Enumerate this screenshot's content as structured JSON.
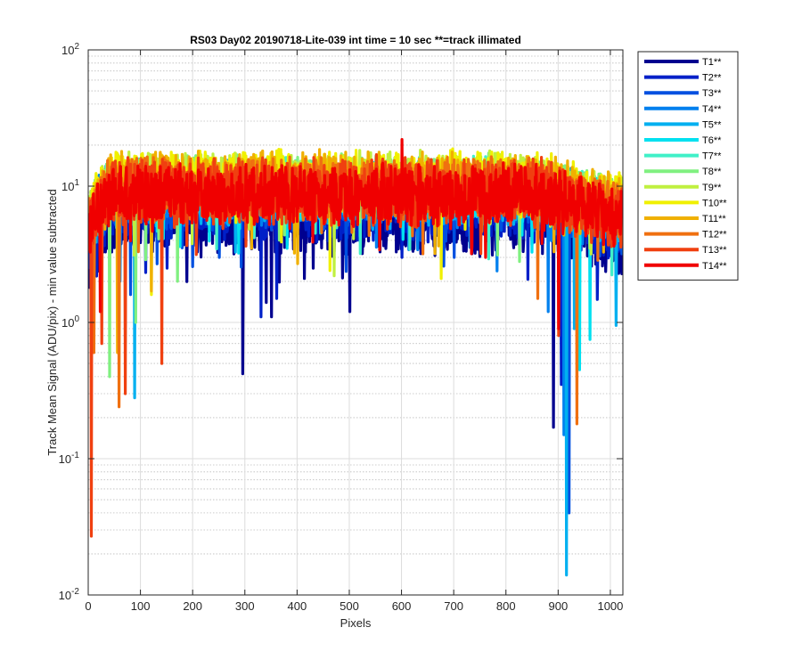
{
  "chart_data": {
    "type": "line",
    "title": "RS03 Day02 20190718-Lite-039 int time = 10 sec    **=track illimated",
    "xlabel": "Pixels",
    "ylabel": "Track Mean Signal (ADU/pix) - min value subtracted",
    "xlim": [
      0,
      1024
    ],
    "ylim": [
      0.01,
      100
    ],
    "yscale": "log",
    "grid": true,
    "legend_position": "outside-right",
    "x_ticks": [
      "0",
      "100",
      "200",
      "300",
      "400",
      "500",
      "600",
      "700",
      "800",
      "900",
      "1000"
    ],
    "y_ticks": [
      {
        "base": "10",
        "exp": "-2"
      },
      {
        "base": "10",
        "exp": "-1"
      },
      {
        "base": "10",
        "exp": "0"
      },
      {
        "base": "10",
        "exp": "1"
      },
      {
        "base": "10",
        "exp": "2"
      }
    ],
    "series": [
      {
        "name": "T1**",
        "color": "#00008f",
        "center": 6.0,
        "spread": 0.55,
        "dips": [
          [
            295,
            0.42
          ],
          [
            350,
            1.1
          ],
          [
            340,
            1.4
          ],
          [
            500,
            1.2
          ],
          [
            890,
            0.17
          ],
          [
            620,
            3.5
          ],
          [
            430,
            2.5
          ]
        ]
      },
      {
        "name": "T2**",
        "color": "#0020c8",
        "center": 7.0,
        "spread": 0.5,
        "dips": [
          [
            330,
            1.1
          ],
          [
            360,
            1.5
          ],
          [
            905,
            0.35
          ],
          [
            600,
            3.0
          ],
          [
            150,
            2.5
          ]
        ]
      },
      {
        "name": "T3**",
        "color": "#0050e0",
        "center": 8.0,
        "spread": 0.45,
        "dips": [
          [
            920,
            0.04
          ],
          [
            80,
            1.6
          ],
          [
            250,
            3.0
          ],
          [
            700,
            3.0
          ]
        ]
      },
      {
        "name": "T4**",
        "color": "#0080ee",
        "center": 9.0,
        "spread": 0.45,
        "dips": [
          [
            910,
            0.15
          ],
          [
            60,
            2.0
          ],
          [
            880,
            1.2
          ]
        ]
      },
      {
        "name": "T5**",
        "color": "#00b0f0",
        "center": 8.5,
        "spread": 0.45,
        "dips": [
          [
            88,
            0.28
          ],
          [
            915,
            0.014
          ],
          [
            1010,
            0.95
          ],
          [
            930,
            0.9
          ]
        ]
      },
      {
        "name": "T6**",
        "color": "#00e0f0",
        "center": 9.5,
        "spread": 0.4,
        "dips": [
          [
            940,
            0.45
          ],
          [
            960,
            0.75
          ],
          [
            380,
            3.5
          ]
        ]
      },
      {
        "name": "T7**",
        "color": "#40f0c8",
        "center": 10.0,
        "spread": 0.4,
        "dips": [
          [
            70,
            0.7
          ],
          [
            520,
            3.2
          ]
        ]
      },
      {
        "name": "T8**",
        "color": "#80f080",
        "center": 10.5,
        "spread": 0.4,
        "dips": [
          [
            90,
            1.0
          ],
          [
            170,
            2.0
          ],
          [
            40,
            0.4
          ],
          [
            825,
            2.8
          ]
        ]
      },
      {
        "name": "T9**",
        "color": "#c0f040",
        "center": 11.0,
        "spread": 0.4,
        "dips": [
          [
            140,
            1.7
          ],
          [
            470,
            2.2
          ],
          [
            960,
            3.5
          ]
        ]
      },
      {
        "name": "T10**",
        "color": "#f0f000",
        "center": 11.5,
        "spread": 0.4,
        "dips": [
          [
            462,
            2.4
          ],
          [
            675,
            2.1
          ],
          [
            120,
            1.6
          ]
        ]
      },
      {
        "name": "T11**",
        "color": "#f0b000",
        "center": 10.5,
        "spread": 0.45,
        "dips": [
          [
            120,
            1.7
          ],
          [
            55,
            0.6
          ],
          [
            400,
            2.7
          ]
        ]
      },
      {
        "name": "T12**",
        "color": "#f07010",
        "center": 9.5,
        "spread": 0.45,
        "dips": [
          [
            935,
            0.18
          ],
          [
            58,
            0.24
          ],
          [
            860,
            1.5
          ],
          [
            10,
            0.6
          ]
        ]
      },
      {
        "name": "T13**",
        "color": "#f04010",
        "center": 9.0,
        "spread": 0.5,
        "dips": [
          [
            5,
            0.027
          ],
          [
            140,
            0.5
          ],
          [
            25,
            0.7
          ],
          [
            70,
            0.3
          ],
          [
            900,
            0.8
          ]
        ]
      },
      {
        "name": "T14**",
        "color": "#f00000",
        "center": 8.5,
        "spread": 0.45,
        "dips": [
          [
            22,
            1.2
          ],
          [
            900,
            0.9
          ],
          [
            600,
            22.0
          ],
          [
            760,
            3.0
          ]
        ]
      }
    ]
  }
}
